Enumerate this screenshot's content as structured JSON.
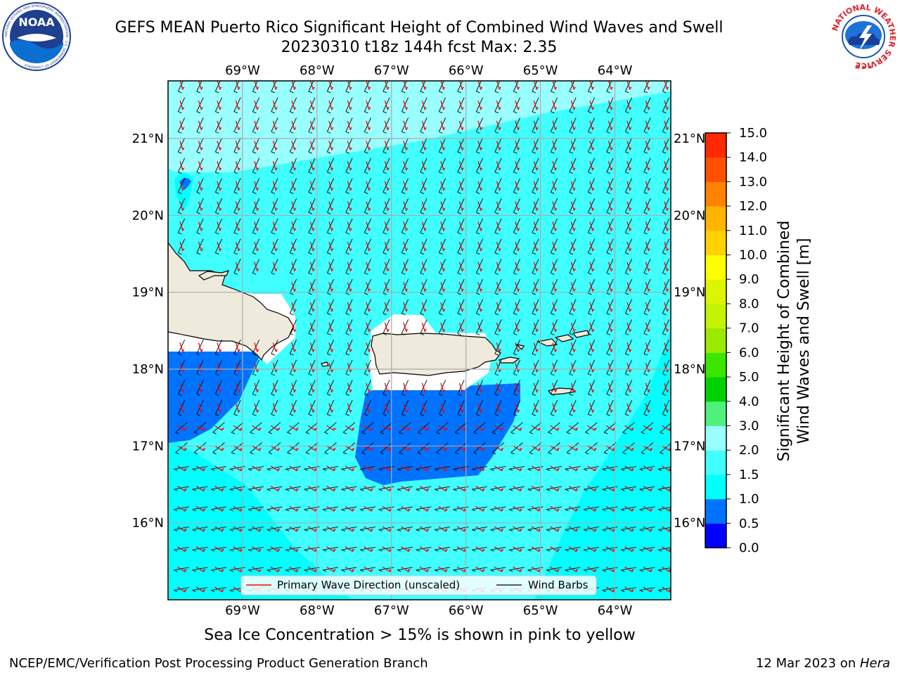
{
  "header": {
    "title_line1": "GEFS MEAN Puerto Rico Significant Height of Combined Wind Waves and Swell",
    "title_line2": "20230310 t18z 144h fcst   Max: 2.35"
  },
  "logos": {
    "left": "NOAA",
    "left_ring": "NATIONAL OCEANIC AND ATMOSPHERIC ADMINISTRATION · U.S. DEPARTMENT OF COMMERCE",
    "right_ring": "NATIONAL WEATHER SERVICE"
  },
  "map": {
    "lon_labels": [
      "69°W",
      "68°W",
      "67°W",
      "66°W",
      "65°W",
      "64°W"
    ],
    "lat_labels": [
      "21°N",
      "20°N",
      "19°N",
      "18°N",
      "17°N",
      "16°N"
    ],
    "lon_values": [
      -69,
      -68,
      -67,
      -66,
      -65,
      -64
    ],
    "lat_values": [
      21,
      20,
      19,
      18,
      17,
      16
    ],
    "extent": {
      "lon_min": -70,
      "lon_max": -63.25,
      "lat_min": 15,
      "lat_max": 21.75
    }
  },
  "legend": {
    "wave_direction": "Primary Wave Direction (unscaled)",
    "wind_barbs": "Wind Barbs",
    "wave_color": "#ff0000",
    "barb_color": "#000000"
  },
  "colorbar": {
    "label_line1": "Significant Height of Combined",
    "label_line2": "Wind Waves and Swell [m]",
    "ticks": [
      "0.0",
      "0.5",
      "1.0",
      "1.5",
      "2.0",
      "3.0",
      "4.0",
      "5.0",
      "6.0",
      "7.0",
      "8.0",
      "9.0",
      "10.0",
      "11.0",
      "12.0",
      "13.0",
      "14.0",
      "15.0"
    ],
    "colors": [
      "#0000ff",
      "#0073ff",
      "#00ffff",
      "#41ffff",
      "#9affff",
      "#50f07d",
      "#00d200",
      "#3ce600",
      "#9bea00",
      "#c3f500",
      "#dcf500",
      "#ffff00",
      "#ffd200",
      "#ffb400",
      "#ff8200",
      "#ff5000",
      "#ff2800",
      "#ff0000"
    ]
  },
  "footer": {
    "note": "Sea Ice Concentration > 15% is shown in pink to yellow",
    "credit": "NCEP/EMC/Verification Post Processing Product Generation Branch",
    "date": "12 Mar 2023 on ",
    "host": "Hera"
  }
}
